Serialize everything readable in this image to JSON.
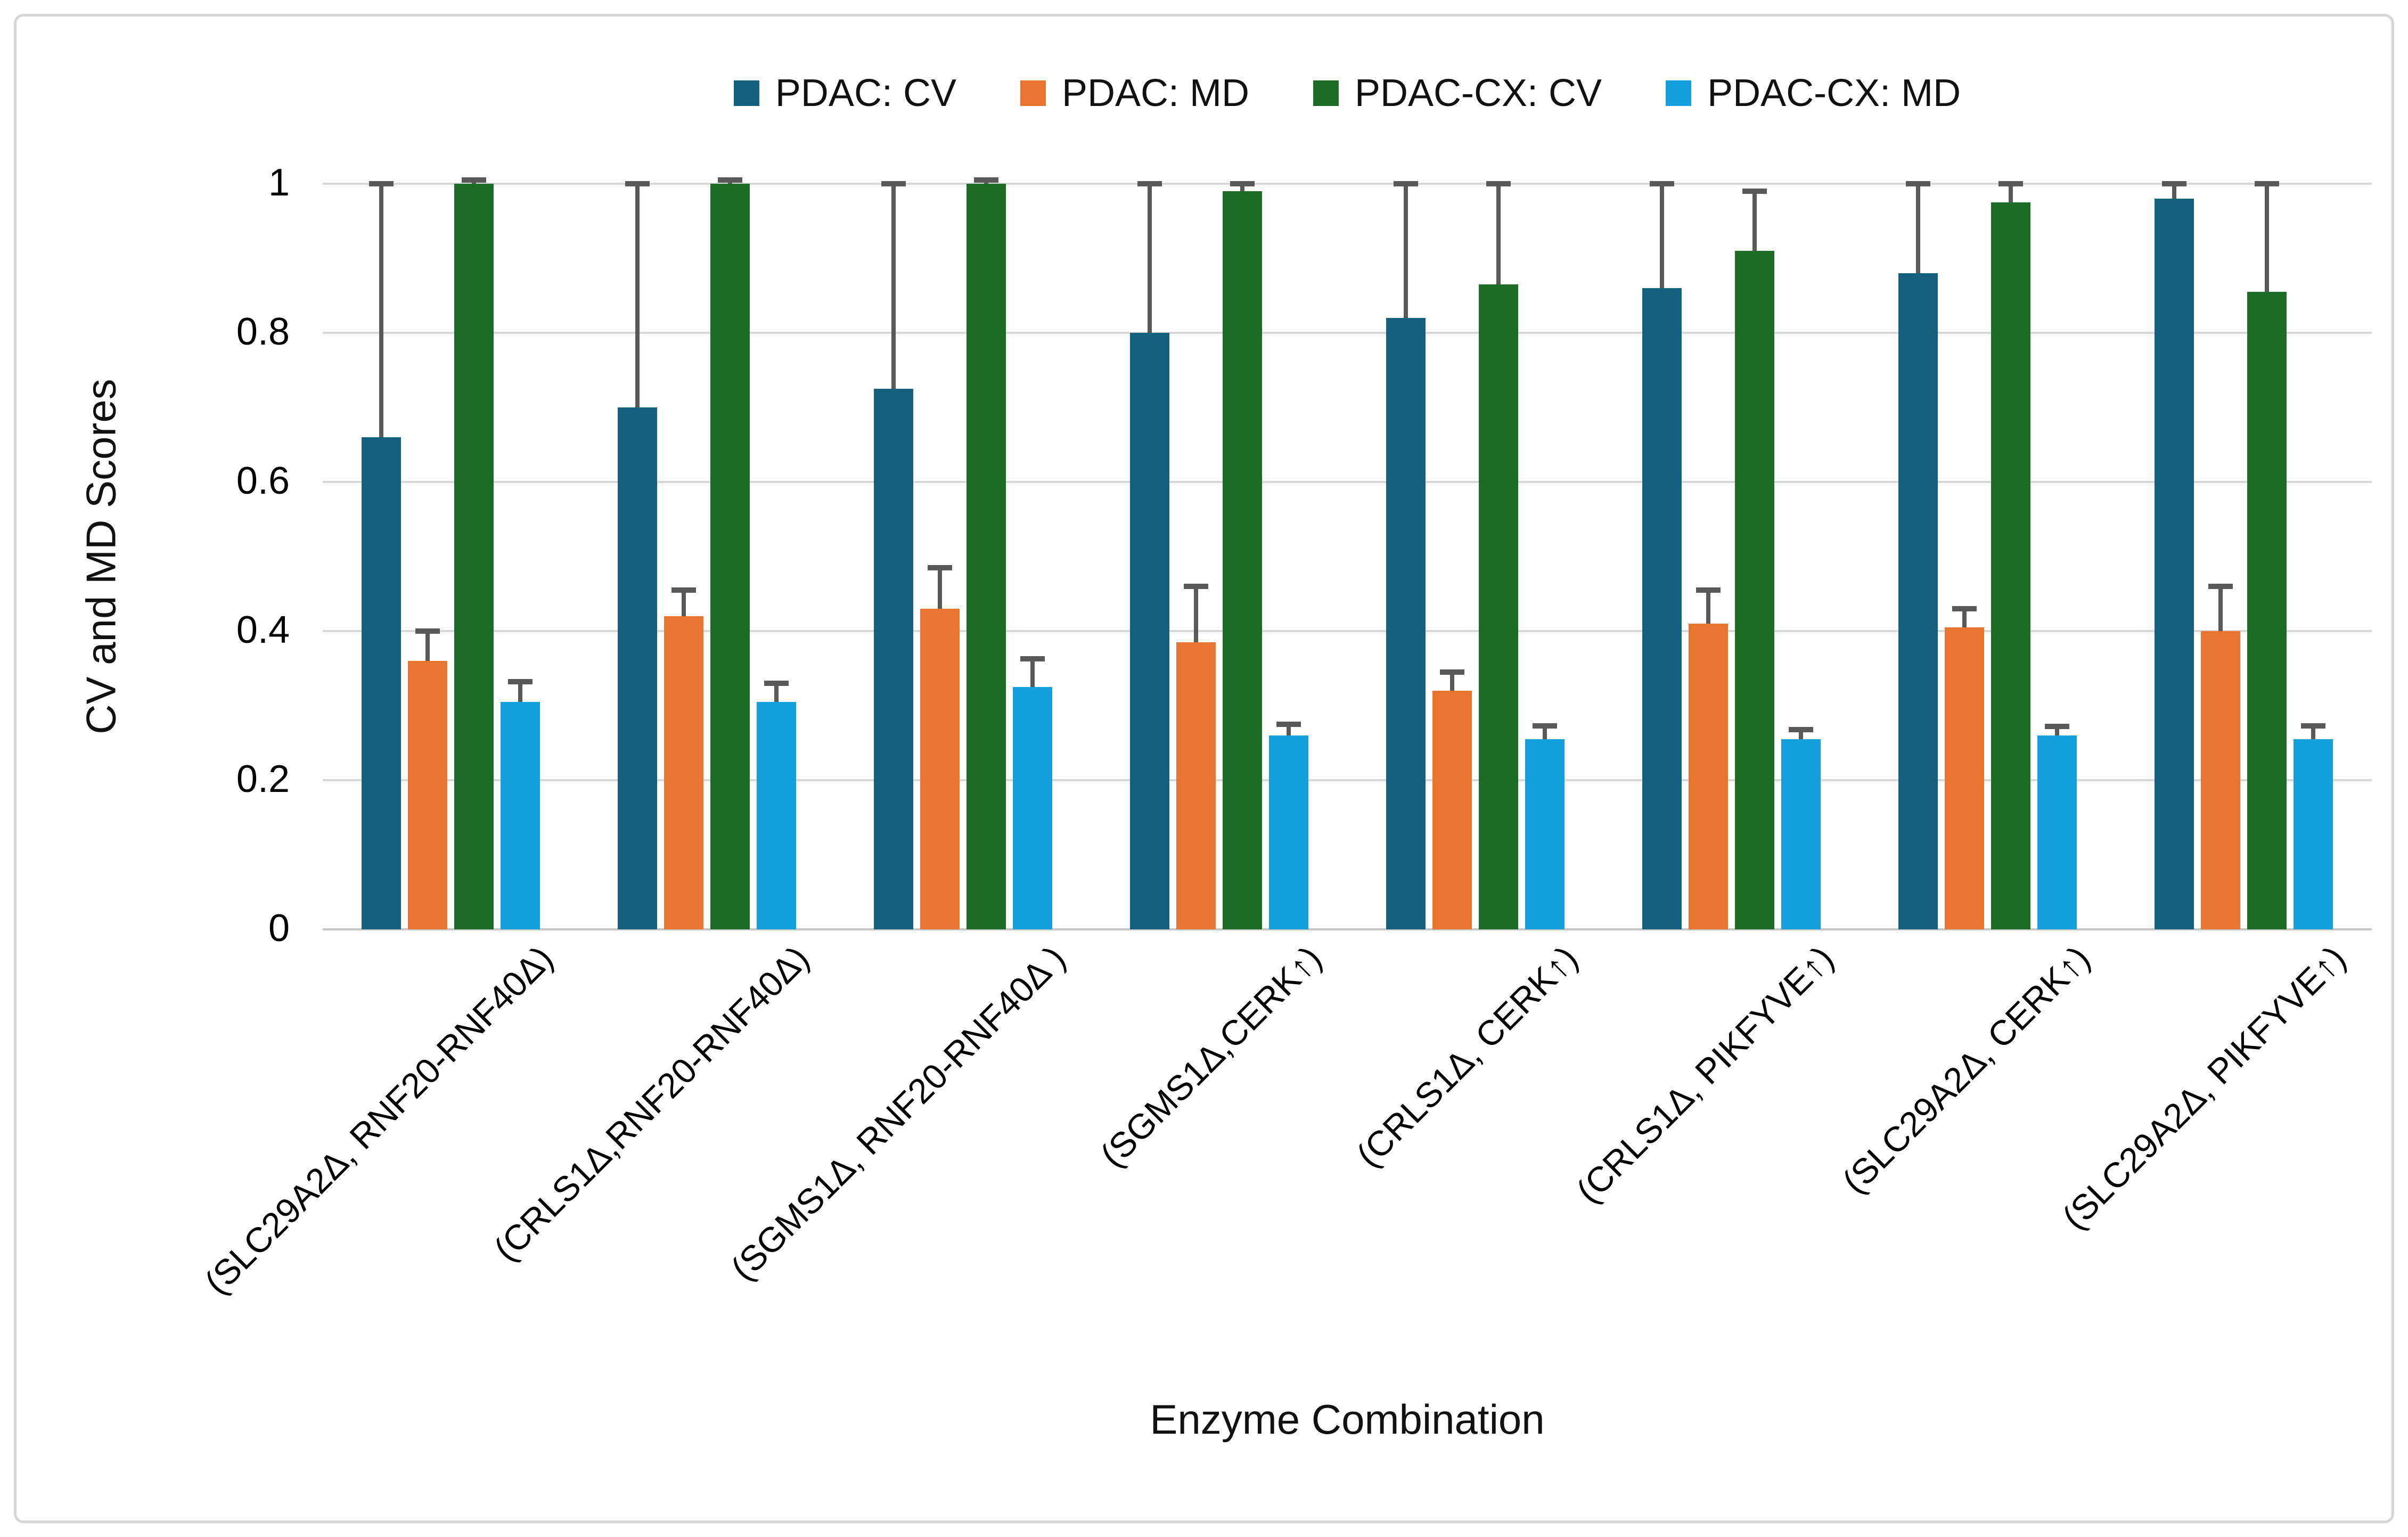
{
  "figure": {
    "y_axis_title": "CV and MD Scores",
    "x_axis_title": "Enzyme Combination"
  },
  "legend": {
    "items": [
      {
        "label": "PDAC: CV",
        "color": "#16607F"
      },
      {
        "label": "PDAC: MD",
        "color": "#E87531"
      },
      {
        "label": "PDAC-CX: CV",
        "color": "#1C6B27"
      },
      {
        "label": "PDAC-CX: MD",
        "color": "#14A0DC"
      }
    ]
  },
  "chart_data": {
    "type": "bar",
    "title": "",
    "xlabel": "Enzyme Combination",
    "ylabel": "CV and MD Scores",
    "ylim": [
      0,
      1
    ],
    "grid": true,
    "legend_position": "top",
    "error_bars": "plus_direction_only",
    "ytick_values": [
      0,
      0.2,
      0.4,
      0.6,
      0.8,
      1
    ],
    "ytick_labels": [
      "0",
      "0.2",
      "0.4",
      "0.6",
      "0.8",
      "1"
    ],
    "categories": [
      "(SLC29A2Δ, RNF20-RNF40Δ)",
      "(CRLS1Δ,RNF20-RNF40Δ)",
      "(SGMS1Δ, RNF20-RNF40Δ )",
      "(SGMS1Δ,CERK↑)",
      "(CRLS1Δ, CERK↑)",
      "(CRLS1Δ, PIKFYVE↑)",
      "(SLC29A2Δ, CERK↑)",
      "(SLC29A2Δ, PIKFYVE↑)"
    ],
    "series": [
      {
        "name": "PDAC: CV",
        "color": "#16607F",
        "values": [
          0.66,
          0.7,
          0.725,
          0.8,
          0.82,
          0.86,
          0.88,
          0.98
        ],
        "errors_plus": [
          0.34,
          0.3,
          0.275,
          0.2,
          0.18,
          0.14,
          0.12,
          0.02
        ]
      },
      {
        "name": "PDAC: MD",
        "color": "#E87531",
        "values": [
          0.36,
          0.42,
          0.43,
          0.385,
          0.32,
          0.41,
          0.405,
          0.4
        ],
        "errors_plus": [
          0.04,
          0.035,
          0.055,
          0.075,
          0.025,
          0.045,
          0.025,
          0.06
        ]
      },
      {
        "name": "PDAC-CX: CV",
        "color": "#1C6B27",
        "values": [
          1.0,
          1.0,
          1.0,
          0.99,
          0.865,
          0.91,
          0.975,
          0.855
        ],
        "errors_plus": [
          0.005,
          0.005,
          0.005,
          0.01,
          0.135,
          0.08,
          0.025,
          0.145
        ]
      },
      {
        "name": "PDAC-CX: MD",
        "color": "#14A0DC",
        "values": [
          0.305,
          0.305,
          0.325,
          0.26,
          0.255,
          0.255,
          0.26,
          0.255
        ],
        "errors_plus": [
          0.027,
          0.025,
          0.038,
          0.015,
          0.018,
          0.013,
          0.012,
          0.018
        ]
      }
    ],
    "style_colors": {
      "gridline": "#D9D9D9",
      "axis_line": "#C6C6C6",
      "error_bar": "#595959",
      "text": "#111111",
      "frame_border": "#D6D6D6"
    }
  }
}
